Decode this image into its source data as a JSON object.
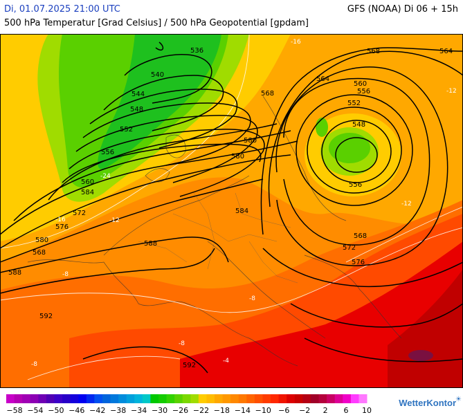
{
  "header": {
    "datetime": "Di, 01.07.2025 21:00 UTC",
    "model_run": "GFS (NOAA) Di 06 + 15h",
    "field": "500 hPa Temperatur [Grad Celsius] / 500 hPa Geopotential [gpdam]"
  },
  "brand": {
    "name": "WetterKontor"
  },
  "legend": {
    "tick_labels": [
      "−58",
      "−54",
      "−50",
      "−46",
      "−42",
      "−38",
      "−34",
      "−30",
      "−26",
      "−22",
      "−18",
      "−14",
      "−10",
      "−6",
      "−2",
      "2",
      "6",
      "10"
    ],
    "colors": [
      "#c800c8",
      "#b400b4",
      "#a000b4",
      "#8c00b4",
      "#6e00b4",
      "#5000b4",
      "#3c00c8",
      "#2800c8",
      "#1400dc",
      "#0000f0",
      "#0028f0",
      "#0050f0",
      "#0064dc",
      "#0078dc",
      "#008cdc",
      "#00a0dc",
      "#00b4dc",
      "#00c8c8",
      "#00c800",
      "#14cc00",
      "#32d200",
      "#5ad200",
      "#7ad800",
      "#a0dc00",
      "#ffcc00",
      "#ffbc00",
      "#ffa800",
      "#ff9800",
      "#ff8800",
      "#ff7800",
      "#ff6400",
      "#ff5000",
      "#ff3c00",
      "#ff2800",
      "#f01400",
      "#dc0000",
      "#c80000",
      "#b40014",
      "#a00028",
      "#b4003c",
      "#c80064",
      "#dc0096",
      "#f000c8",
      "#ff3cff",
      "#ff78ff"
    ]
  },
  "map": {
    "geopotential_labels": [
      "536",
      "540",
      "544",
      "548",
      "552",
      "556",
      "560",
      "564",
      "568",
      "572",
      "576",
      "580",
      "584",
      "588",
      "592",
      "568",
      "564",
      "560",
      "556",
      "552",
      "548",
      "556",
      "568",
      "572",
      "576",
      "580",
      "584",
      "588",
      "592",
      "580",
      "568"
    ],
    "temperature_labels": [
      "-24",
      "-16",
      "-16",
      "-12",
      "-12",
      "-8",
      "-8",
      "-8",
      "-8",
      "-4",
      "-12"
    ],
    "colors": {
      "very_cold": "#1ec01e",
      "cold": "#5ad000",
      "cool": "#a0dc00",
      "mild": "#ffcc00",
      "warm1": "#ffa800",
      "warm2": "#ff8c00",
      "warm3": "#ff6e00",
      "hot1": "#ff4a00",
      "hot2": "#e80000",
      "hot3": "#c00000",
      "hottest": "#7a1040"
    }
  }
}
